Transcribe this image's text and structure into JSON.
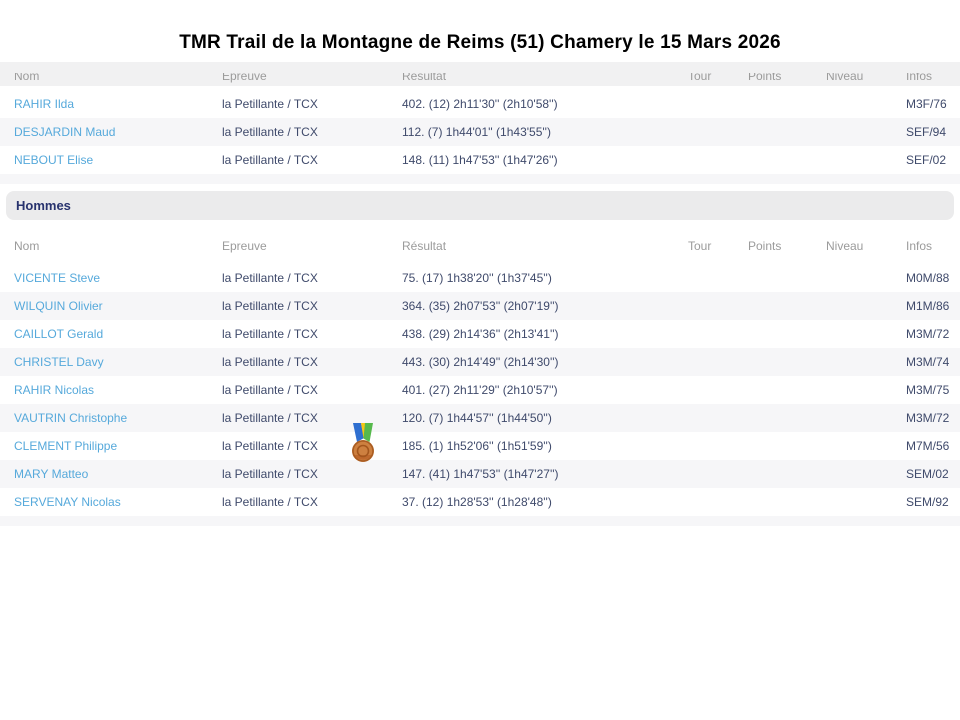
{
  "title": "TMR Trail de la Montagne de Reims (51) Chamery le 15 Mars 2026",
  "columns": [
    "Nom",
    "Epreuve",
    "Résultat",
    "Tour",
    "Points",
    "Niveau",
    "Infos"
  ],
  "sections": [
    {
      "label": "",
      "rows": [
        {
          "nom": "RAHIR Ilda",
          "epreuve": "la Petillante / TCX",
          "resultat": "402. (12) 2h11'30'' (2h10'58'')",
          "tour": "",
          "points": "",
          "niveau": "",
          "infos": "M3F/76"
        },
        {
          "nom": "DESJARDIN Maud",
          "epreuve": "la Petillante / TCX",
          "resultat": "112. (7) 1h44'01'' (1h43'55'')",
          "tour": "",
          "points": "",
          "niveau": "",
          "infos": "SEF/94"
        },
        {
          "nom": "NEBOUT Elise",
          "epreuve": "la Petillante / TCX",
          "resultat": "148. (11) 1h47'53'' (1h47'26'')",
          "tour": "",
          "points": "",
          "niveau": "",
          "infos": "SEF/02"
        }
      ]
    },
    {
      "label": "Hommes",
      "rows": [
        {
          "nom": "VICENTE Steve",
          "epreuve": "la Petillante / TCX",
          "resultat": "75. (17) 1h38'20'' (1h37'45'')",
          "tour": "",
          "points": "",
          "niveau": "",
          "infos": "M0M/88"
        },
        {
          "nom": "WILQUIN Olivier",
          "epreuve": "la Petillante / TCX",
          "resultat": "364. (35) 2h07'53'' (2h07'19'')",
          "tour": "",
          "points": "",
          "niveau": "",
          "infos": "M1M/86"
        },
        {
          "nom": "CAILLOT Gerald",
          "epreuve": "la Petillante / TCX",
          "resultat": "438. (29) 2h14'36'' (2h13'41'')",
          "tour": "",
          "points": "",
          "niveau": "",
          "infos": "M3M/72"
        },
        {
          "nom": "CHRISTEL Davy",
          "epreuve": "la Petillante / TCX",
          "resultat": "443. (30) 2h14'49'' (2h14'30'')",
          "tour": "",
          "points": "",
          "niveau": "",
          "infos": "M3M/74"
        },
        {
          "nom": "RAHIR Nicolas",
          "epreuve": "la Petillante / TCX",
          "resultat": "401. (27) 2h11'29'' (2h10'57'')",
          "tour": "",
          "points": "",
          "niveau": "",
          "infos": "M3M/75"
        },
        {
          "nom": "VAUTRIN Christophe",
          "epreuve": "la Petillante / TCX",
          "resultat": "120. (7) 1h44'57'' (1h44'50'')",
          "tour": "",
          "points": "",
          "niveau": "",
          "infos": "M3M/72"
        },
        {
          "nom": "CLEMENT Philippe",
          "epreuve": "la Petillante / TCX",
          "resultat": "185. (1) 1h52'06'' (1h51'59'')",
          "tour": "",
          "points": "",
          "niveau": "",
          "infos": "M7M/56",
          "medal": "bronze-medal"
        },
        {
          "nom": "MARY Matteo",
          "epreuve": "la Petillante / TCX",
          "resultat": "147. (41) 1h47'53'' (1h47'27'')",
          "tour": "",
          "points": "",
          "niveau": "",
          "infos": "SEM/02"
        },
        {
          "nom": "SERVENAY Nicolas",
          "epreuve": "la Petillante / TCX",
          "resultat": "37. (12) 1h28'53'' (1h28'48'')",
          "tour": "",
          "points": "",
          "niveau": "",
          "infos": "SEM/92"
        }
      ]
    }
  ],
  "colors": {
    "link_blue": "#56a9db",
    "body_navy": "#3f4a6b",
    "header_gray": "#9b9b9b",
    "section_navy": "#28336e",
    "stripe": "#f6f6f8",
    "band": "#ebebec",
    "medal_ribbon_blue": "#2f6fd0",
    "medal_ribbon_yellow": "#f5c616",
    "medal_ribbon_green": "#56b94c",
    "medal_bronze": "#cd8040"
  }
}
